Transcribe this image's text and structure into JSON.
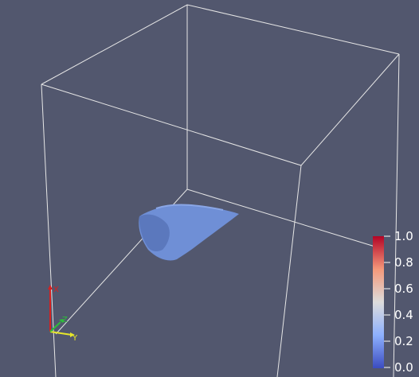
{
  "viewport": {
    "background": "#52576e"
  },
  "bounding_box": {
    "color": "#e6e6e6"
  },
  "surface": {
    "color": "#6f8fd6"
  },
  "color_bar": {
    "labels": [
      "1.0",
      "0.8",
      "0.6",
      "0.4",
      "0.2",
      "0.0"
    ],
    "colormap": [
      "#b40426",
      "#f4987a",
      "#dddcdc",
      "#8db0fe",
      "#3b4cc0"
    ]
  },
  "orientation_axes": {
    "labels": {
      "x": "X",
      "y": "Y",
      "z": "Z"
    },
    "colors": {
      "x": "#d62020",
      "y": "#e6e62a",
      "z": "#2dbf3a"
    }
  }
}
